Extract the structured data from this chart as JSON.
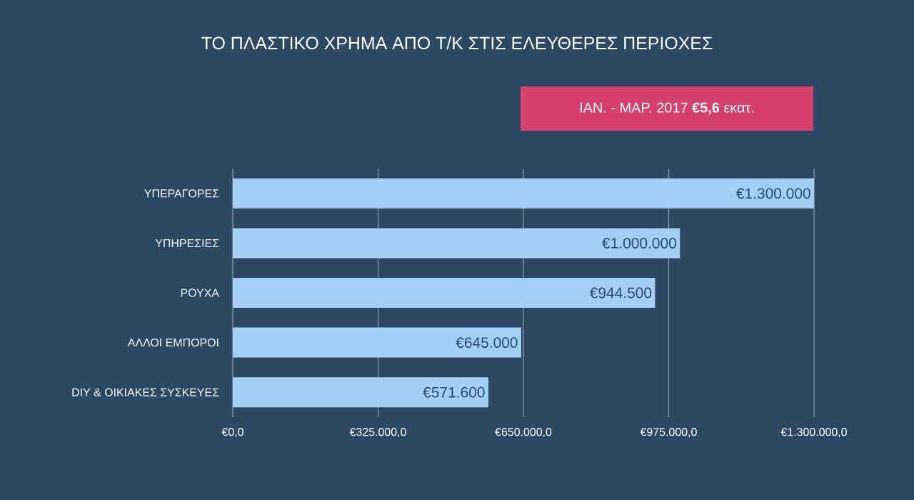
{
  "chart_data": {
    "type": "bar",
    "orientation": "horizontal",
    "title": "ΤΟ ΠΛΑΣΤΙΚΟ ΧΡΗΜΑ ΑΠΟ Τ/Κ ΣΤΙΣ ΕΛΕΥΘΕΡΕΣ ΠΕΡΙΟΧΕΣ",
    "annotations": [
      "ΙΑΝ. - ΜΑΡ. 2017 **€5,6** εκατ."
    ],
    "categories": [
      "ΥΠΕΡΑΓΟΡΕΣ",
      "ΥΠΗΡΕΣΙΕΣ",
      "ΡΟΥΧΑ",
      "ΑΛΛΟΙ ΕΜΠΟΡΟΙ",
      "DIY & ΟΙΚΙΑΚΕΣ ΣΥΣΚΕΥΕΣ"
    ],
    "values": [
      1300000,
      1000000,
      944500,
      645000,
      571600
    ],
    "value_labels": [
      "€1.300.000",
      "€1.000.000",
      "€944.500",
      "€645.000",
      "€571.600"
    ],
    "color": "#a3cff5",
    "xlim": [
      0,
      1300000
    ],
    "xticks": [
      {
        "value": 0,
        "label": "€0,0"
      },
      {
        "value": 325000,
        "label": "€325.000,0"
      },
      {
        "value": 650000,
        "label": "€650.000,0"
      },
      {
        "value": 975000,
        "label": "€975.000,0"
      },
      {
        "value": 1300000,
        "label": "€1.300.000,0"
      }
    ],
    "grid": "x"
  }
}
